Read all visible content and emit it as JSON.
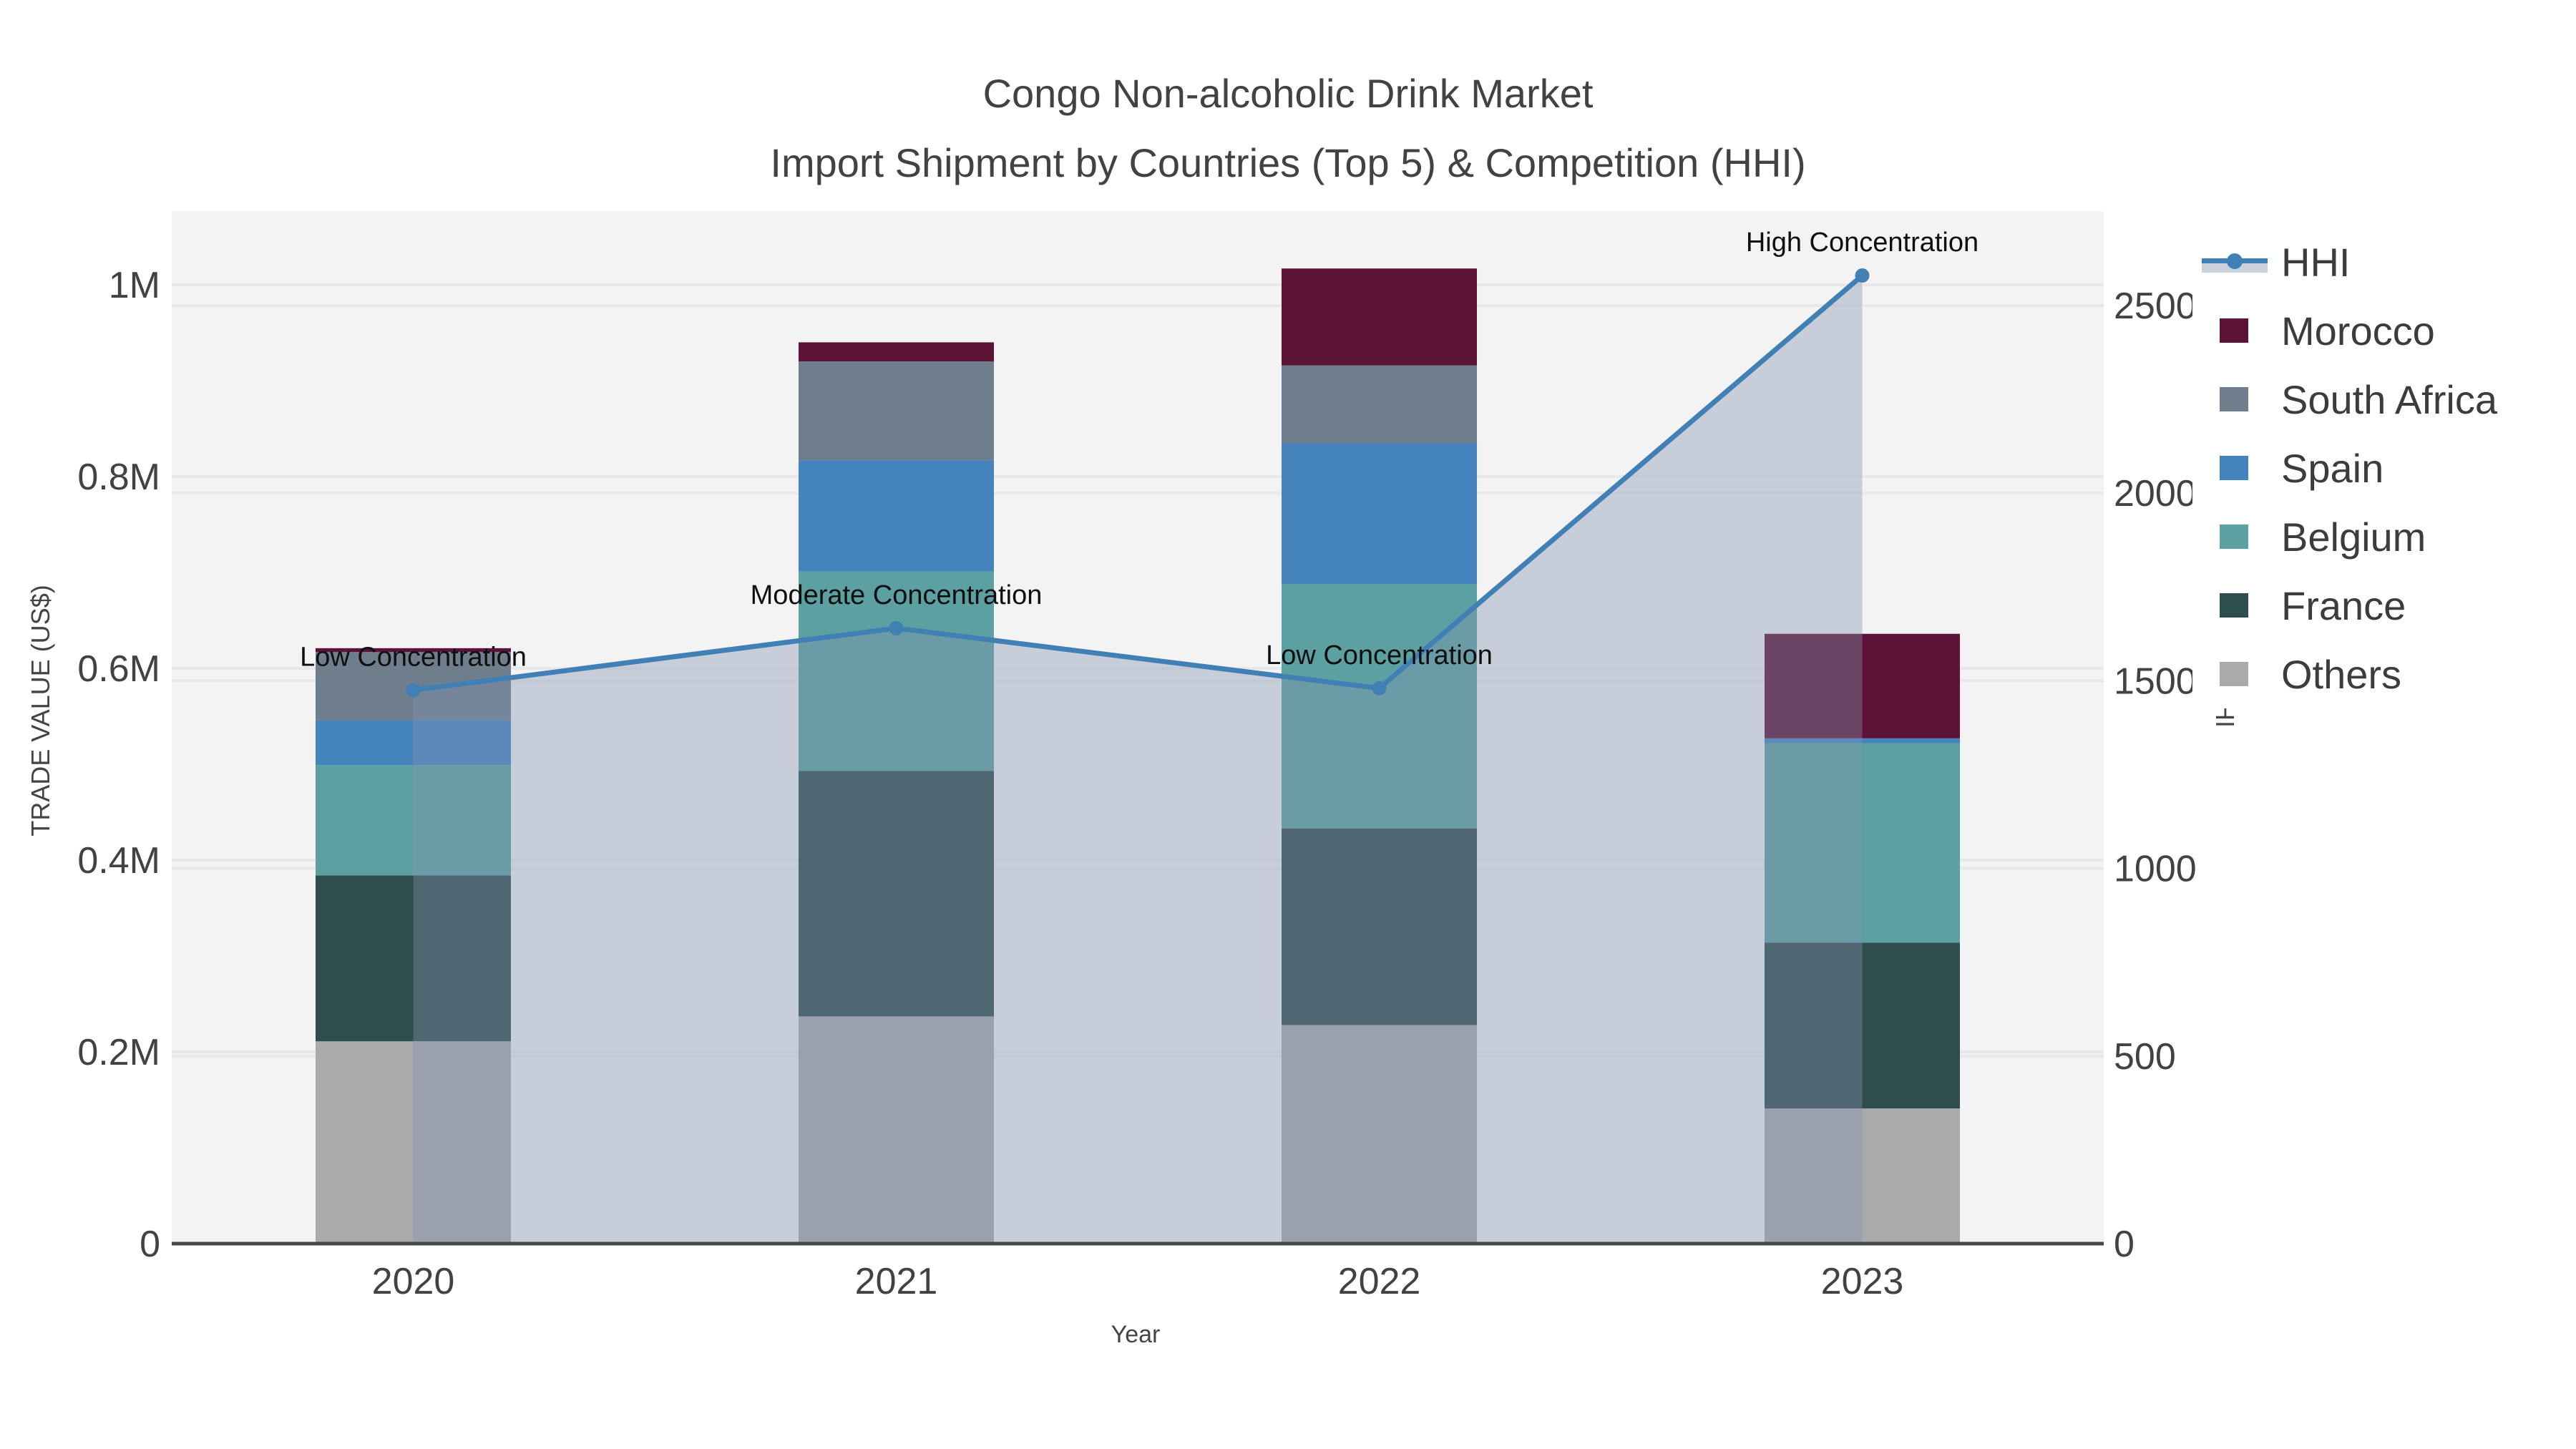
{
  "title": {
    "line1": "Congo Non-alcoholic Drink Market",
    "line2": "Import Shipment by Countries (Top 5) & Competition (HHI)"
  },
  "axes": {
    "x": {
      "title": "Year",
      "categories": [
        "2020",
        "2021",
        "2022",
        "2023"
      ]
    },
    "left": {
      "title": "TRADE VALUE (US$)",
      "ticks": [
        {
          "label": "0",
          "value": 0
        },
        {
          "label": "0.2M",
          "value": 200000
        },
        {
          "label": "0.4M",
          "value": 400000
        },
        {
          "label": "0.6M",
          "value": 600000
        },
        {
          "label": "0.8M",
          "value": 800000
        },
        {
          "label": "1M",
          "value": 1000000
        }
      ],
      "range": [
        0,
        1080000
      ]
    },
    "right": {
      "title": "HHI",
      "ticks": [
        {
          "label": "0",
          "value": 0
        },
        {
          "label": "500",
          "value": 500
        },
        {
          "label": "1000",
          "value": 1000
        },
        {
          "label": "1500",
          "value": 1500
        },
        {
          "label": "2000",
          "value": 2000
        },
        {
          "label": "2500",
          "value": 2500
        }
      ],
      "range": [
        0,
        2750
      ]
    }
  },
  "chart_data": {
    "type": "bar+line",
    "title": "Congo Non-alcoholic Drink Market — Import Shipment by Countries (Top 5) & Competition (HHI)",
    "xlabel": "Year",
    "ylabel_left": "TRADE VALUE (US$)",
    "ylabel_right": "HHI",
    "categories": [
      "2020",
      "2021",
      "2022",
      "2023"
    ],
    "bar_series": [
      {
        "name": "Others",
        "color": "#AAAAAA",
        "values": [
          211000,
          237000,
          228000,
          141000
        ]
      },
      {
        "name": "France",
        "color": "#2E4D4D",
        "values": [
          173000,
          256000,
          205000,
          173000
        ]
      },
      {
        "name": "Belgium",
        "color": "#5CA0A2",
        "values": [
          115000,
          208000,
          255000,
          208000
        ]
      },
      {
        "name": "Spain",
        "color": "#4483BB",
        "values": [
          47000,
          116000,
          147000,
          5000
        ]
      },
      {
        "name": "South Africa",
        "color": "#6F7E8D",
        "values": [
          71000,
          103000,
          81000,
          0
        ]
      },
      {
        "name": "Morocco",
        "color": "#5D1237",
        "values": [
          4000,
          20000,
          101000,
          109000
        ]
      }
    ],
    "line_series": {
      "name": "HHI",
      "color": "#4180B4",
      "fill": "rgba(132,146,175,0.38)",
      "values": [
        1475,
        1640,
        1480,
        2580
      ]
    },
    "annotations": [
      "Low Concentration",
      "Moderate Concentration",
      "Low Concentration",
      "High Concentration"
    ],
    "ylim_left": [
      0,
      1080000
    ],
    "ylim_right": [
      0,
      2750
    ],
    "grid": true,
    "legend_position": "right"
  },
  "legend": {
    "items": [
      {
        "label": "HHI",
        "type": "line",
        "color": "#4180B4"
      },
      {
        "label": "Morocco",
        "type": "swatch",
        "color": "#5D1237"
      },
      {
        "label": "South Africa",
        "type": "swatch",
        "color": "#6F7E8D"
      },
      {
        "label": "Spain",
        "type": "swatch",
        "color": "#4483BB"
      },
      {
        "label": "Belgium",
        "type": "swatch",
        "color": "#5CA0A2"
      },
      {
        "label": "France",
        "type": "swatch",
        "color": "#2E4D4D"
      },
      {
        "label": "Others",
        "type": "swatch",
        "color": "#AAAAAA"
      }
    ]
  },
  "colors": {
    "plot_bg": "#F3F3F3",
    "grid": "#E8E8EA",
    "axis_line": "#444748",
    "tick_text": "#424242",
    "annotation_text": "#0F0F0F",
    "hhi_line": "#4180B4",
    "hhi_fill": "rgba(132,146,175,0.38)"
  }
}
